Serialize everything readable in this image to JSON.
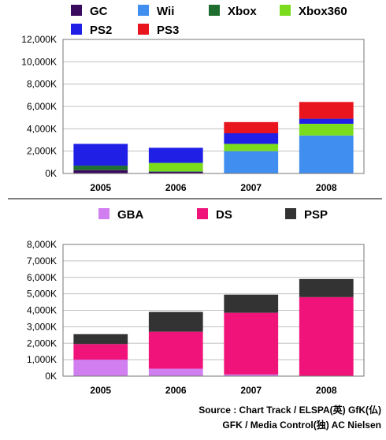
{
  "chart_data": [
    {
      "type": "bar",
      "stacked": true,
      "title": "",
      "xlabel": "",
      "ylabel": "",
      "categories": [
        "2005",
        "2006",
        "2007",
        "2008"
      ],
      "ylim": [
        0,
        12000
      ],
      "yticks": [
        "0K",
        "2,000K",
        "4,000K",
        "6,000K",
        "8,000K",
        "10,000K",
        "12,000K"
      ],
      "grid": true,
      "legend_position": "top",
      "series": [
        {
          "name": "GC",
          "color": "#3a0a5e",
          "values": [
            300,
            150,
            0,
            0
          ]
        },
        {
          "name": "Xbox",
          "color": "#1e6e30",
          "values": [
            400,
            50,
            0,
            0
          ]
        },
        {
          "name": "Wii",
          "color": "#3f8ef0",
          "values": [
            0,
            0,
            2000,
            3400
          ]
        },
        {
          "name": "Xbox360",
          "color": "#7bdc1e",
          "values": [
            0,
            750,
            650,
            1050
          ]
        },
        {
          "name": "PS2",
          "color": "#1f1fe6",
          "values": [
            1950,
            1350,
            950,
            450
          ]
        },
        {
          "name": "PS3",
          "color": "#e8141e",
          "values": [
            0,
            0,
            1000,
            1500
          ]
        }
      ],
      "legend_order": [
        "GC",
        "Wii",
        "Xbox",
        "Xbox360",
        "PS2",
        "PS3"
      ]
    },
    {
      "type": "bar",
      "stacked": true,
      "title": "",
      "xlabel": "",
      "ylabel": "",
      "categories": [
        "2005",
        "2006",
        "2007",
        "2008"
      ],
      "ylim": [
        0,
        8000
      ],
      "yticks": [
        "0K",
        "1,000K",
        "2,000K",
        "3,000K",
        "4,000K",
        "5,000K",
        "6,000K",
        "7,000K",
        "8,000K"
      ],
      "grid": true,
      "legend_position": "top",
      "series": [
        {
          "name": "GBA",
          "color": "#d07ef0",
          "values": [
            1000,
            450,
            100,
            0
          ]
        },
        {
          "name": "DS",
          "color": "#f0147a",
          "values": [
            950,
            2250,
            3750,
            4800
          ]
        },
        {
          "name": "PSP",
          "color": "#333333",
          "values": [
            600,
            1200,
            1100,
            1100
          ]
        }
      ],
      "legend_order": [
        "GBA",
        "DS",
        "PSP"
      ]
    }
  ],
  "source": {
    "line1": "Source : Chart Track / ELSPA(英) GfK(仏)",
    "line2": "GFK / Media Control(独) AC Nielsen"
  }
}
